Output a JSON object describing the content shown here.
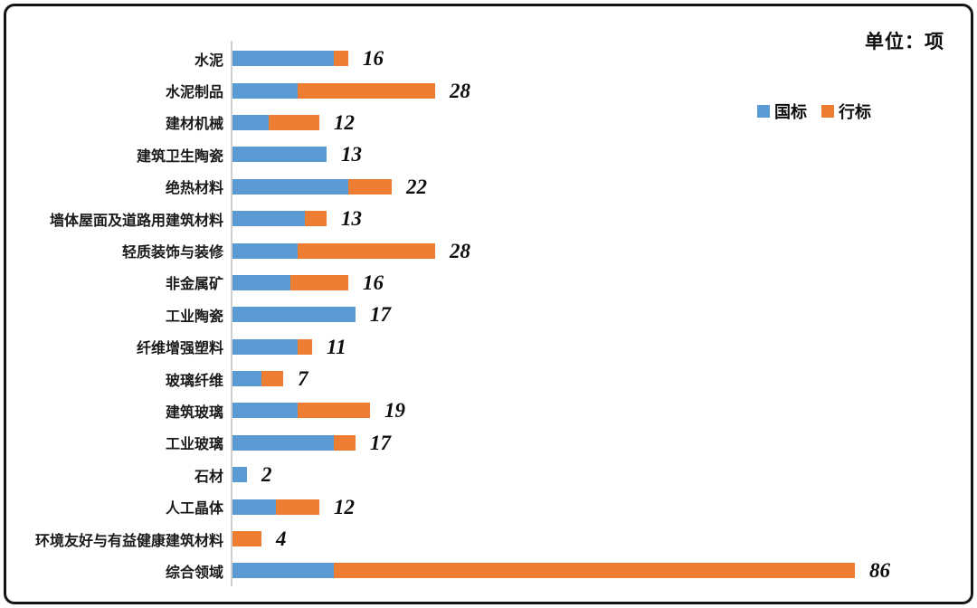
{
  "header": {
    "unit_label": "单位：项"
  },
  "legend": {
    "items": [
      {
        "label": "国标",
        "color": "#5B9BD5"
      },
      {
        "label": "行标",
        "color": "#ED7D31"
      }
    ]
  },
  "colors": {
    "guobiao_blue": "#5B9BD5",
    "hangbiao_orange": "#ED7D31",
    "axis_gray": "#cfcfcf",
    "text_black": "#0d0d0d"
  },
  "chart_data": {
    "type": "bar",
    "orientation": "horizontal",
    "stacked": true,
    "title": "单位：项",
    "xlabel": "",
    "ylabel": "",
    "xlim": [
      0,
      100
    ],
    "grid": false,
    "legend_position": "top-right",
    "value_labels": "total outside end, bold italic",
    "categories": [
      "水泥",
      "水泥制品",
      "建材机械",
      "建筑卫生陶瓷",
      "绝热材料",
      "墙体屋面及道路用建筑材料",
      "轻质装饰与装修",
      "非金属矿",
      "工业陶瓷",
      "纤维增强塑料",
      "玻璃纤维",
      "建筑玻璃",
      "工业玻璃",
      "石材",
      "人工晶体",
      "环境友好与有益健康建筑材料",
      "综合领域"
    ],
    "series": [
      {
        "name": "国标",
        "color": "#5B9BD5",
        "values": [
          14,
          9,
          5,
          13,
          16,
          10,
          9,
          8,
          17,
          9,
          4,
          9,
          14,
          2,
          6,
          0,
          14
        ]
      },
      {
        "name": "行标",
        "color": "#ED7D31",
        "values": [
          2,
          19,
          7,
          0,
          6,
          3,
          19,
          8,
          0,
          2,
          3,
          10,
          3,
          0,
          6,
          4,
          72
        ]
      }
    ],
    "totals": [
      16,
      28,
      12,
      13,
      22,
      13,
      28,
      16,
      17,
      11,
      7,
      19,
      17,
      2,
      12,
      4,
      86
    ]
  }
}
